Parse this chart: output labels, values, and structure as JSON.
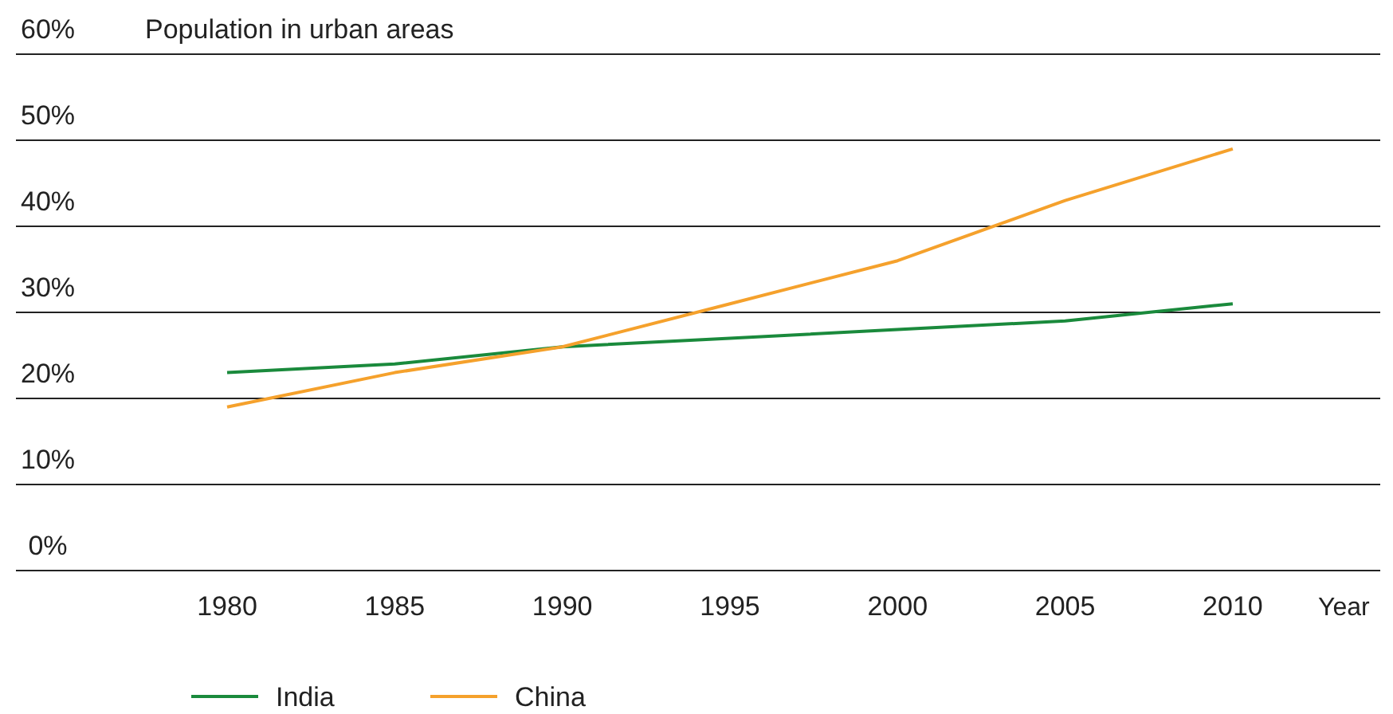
{
  "chart_data": {
    "type": "line",
    "title": "Population in urban areas",
    "xlabel": "Year",
    "x": [
      1980,
      1985,
      1990,
      1995,
      2000,
      2005,
      2010
    ],
    "series": [
      {
        "name": "India",
        "color": "#1a8a3c",
        "values": [
          23,
          24,
          26,
          27,
          28,
          29,
          31
        ]
      },
      {
        "name": "China",
        "color": "#f5a12c",
        "values": [
          19,
          23,
          26,
          31,
          36,
          43,
          49
        ]
      }
    ],
    "xlim": [
      1973.7,
      2014.4
    ],
    "xticks": [
      1980,
      1985,
      1990,
      1995,
      2000,
      2005,
      2010
    ],
    "ylim": [
      0,
      60
    ],
    "yticks": [
      {
        "value": 0,
        "label": "0%"
      },
      {
        "value": 10,
        "label": "10%"
      },
      {
        "value": 20,
        "label": "20%"
      },
      {
        "value": 30,
        "label": "30%"
      },
      {
        "value": 40,
        "label": "40%"
      },
      {
        "value": 50,
        "label": "50%"
      },
      {
        "value": 60,
        "label": "60%"
      }
    ],
    "grid": "y",
    "legend": "bottom",
    "marker": "none",
    "line_style": "solid"
  }
}
